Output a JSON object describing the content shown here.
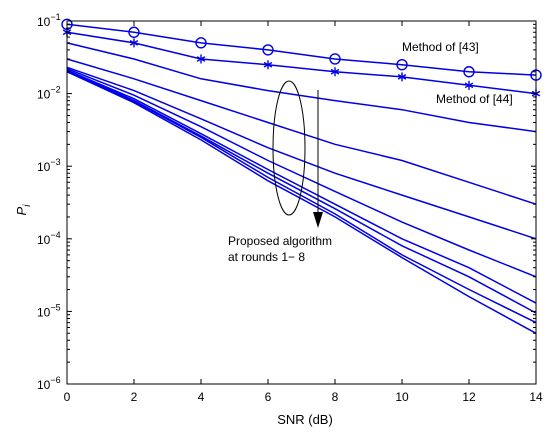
{
  "chart_data": {
    "type": "line",
    "xlabel": "SNR (dB)",
    "ylabel_base": "P",
    "ylabel_sub": "i",
    "xlim": [
      0,
      14
    ],
    "ylim": [
      1e-06,
      0.1
    ],
    "yscale": "log",
    "grid": false,
    "x_ticks": [
      0,
      2,
      4,
      6,
      8,
      10,
      12,
      14
    ],
    "x_tick_labels": [
      "0",
      "2",
      "4",
      "6",
      "8",
      "10",
      "12",
      "14"
    ],
    "y_ticks": [
      -6,
      -5,
      -4,
      -3,
      -2,
      -1
    ],
    "y_tick_base": "10",
    "y_tick_exponents": [
      "−6",
      "−5",
      "−4",
      "−3",
      "−2",
      "−1"
    ],
    "line_color": "#0000e6",
    "x": [
      0,
      2,
      4,
      6,
      8,
      10,
      12,
      14
    ],
    "series": [
      {
        "label": "Method of [43]",
        "marker": "circle",
        "values": [
          0.09,
          0.07,
          0.05,
          0.04,
          0.03,
          0.025,
          0.02,
          0.018
        ]
      },
      {
        "label": "Method of [44]",
        "marker": "star",
        "values": [
          0.07,
          0.05,
          0.03,
          0.025,
          0.02,
          0.017,
          0.013,
          0.01
        ]
      },
      {
        "marker": "none",
        "values": [
          0.05,
          0.03,
          0.016,
          0.011,
          0.008,
          0.006,
          0.004,
          0.003
        ]
      },
      {
        "marker": "none",
        "values": [
          0.03,
          0.016,
          0.008,
          0.004,
          0.002,
          0.0012,
          0.0006,
          0.0003
        ]
      },
      {
        "marker": "none",
        "values": [
          0.023,
          0.011,
          0.0045,
          0.0018,
          0.0008,
          0.0004,
          0.0002,
          0.0001
        ]
      },
      {
        "marker": "none",
        "values": [
          0.022,
          0.0095,
          0.0035,
          0.0012,
          0.00045,
          0.00017,
          7e-05,
          3e-05
        ]
      },
      {
        "marker": "none",
        "values": [
          0.021,
          0.0085,
          0.0028,
          0.0009,
          0.0003,
          0.0001,
          4e-05,
          1.3e-05
        ]
      },
      {
        "marker": "none",
        "values": [
          0.021,
          0.008,
          0.0026,
          0.0008,
          0.00026,
          8e-05,
          3e-05,
          9.5e-06
        ]
      },
      {
        "marker": "none",
        "values": [
          0.02,
          0.0078,
          0.0025,
          0.0007,
          0.00022,
          6e-05,
          2e-05,
          7e-06
        ]
      },
      {
        "marker": "none",
        "values": [
          0.02,
          0.0075,
          0.0023,
          0.00063,
          0.0002,
          5.5e-05,
          1.6e-05,
          5e-06
        ]
      }
    ],
    "annotations": {
      "method43": "Method of [43]",
      "method44": "Method of [44]",
      "proposed_line1": "Proposed algorithm",
      "proposed_line2": "at rounds 1− 8"
    }
  }
}
